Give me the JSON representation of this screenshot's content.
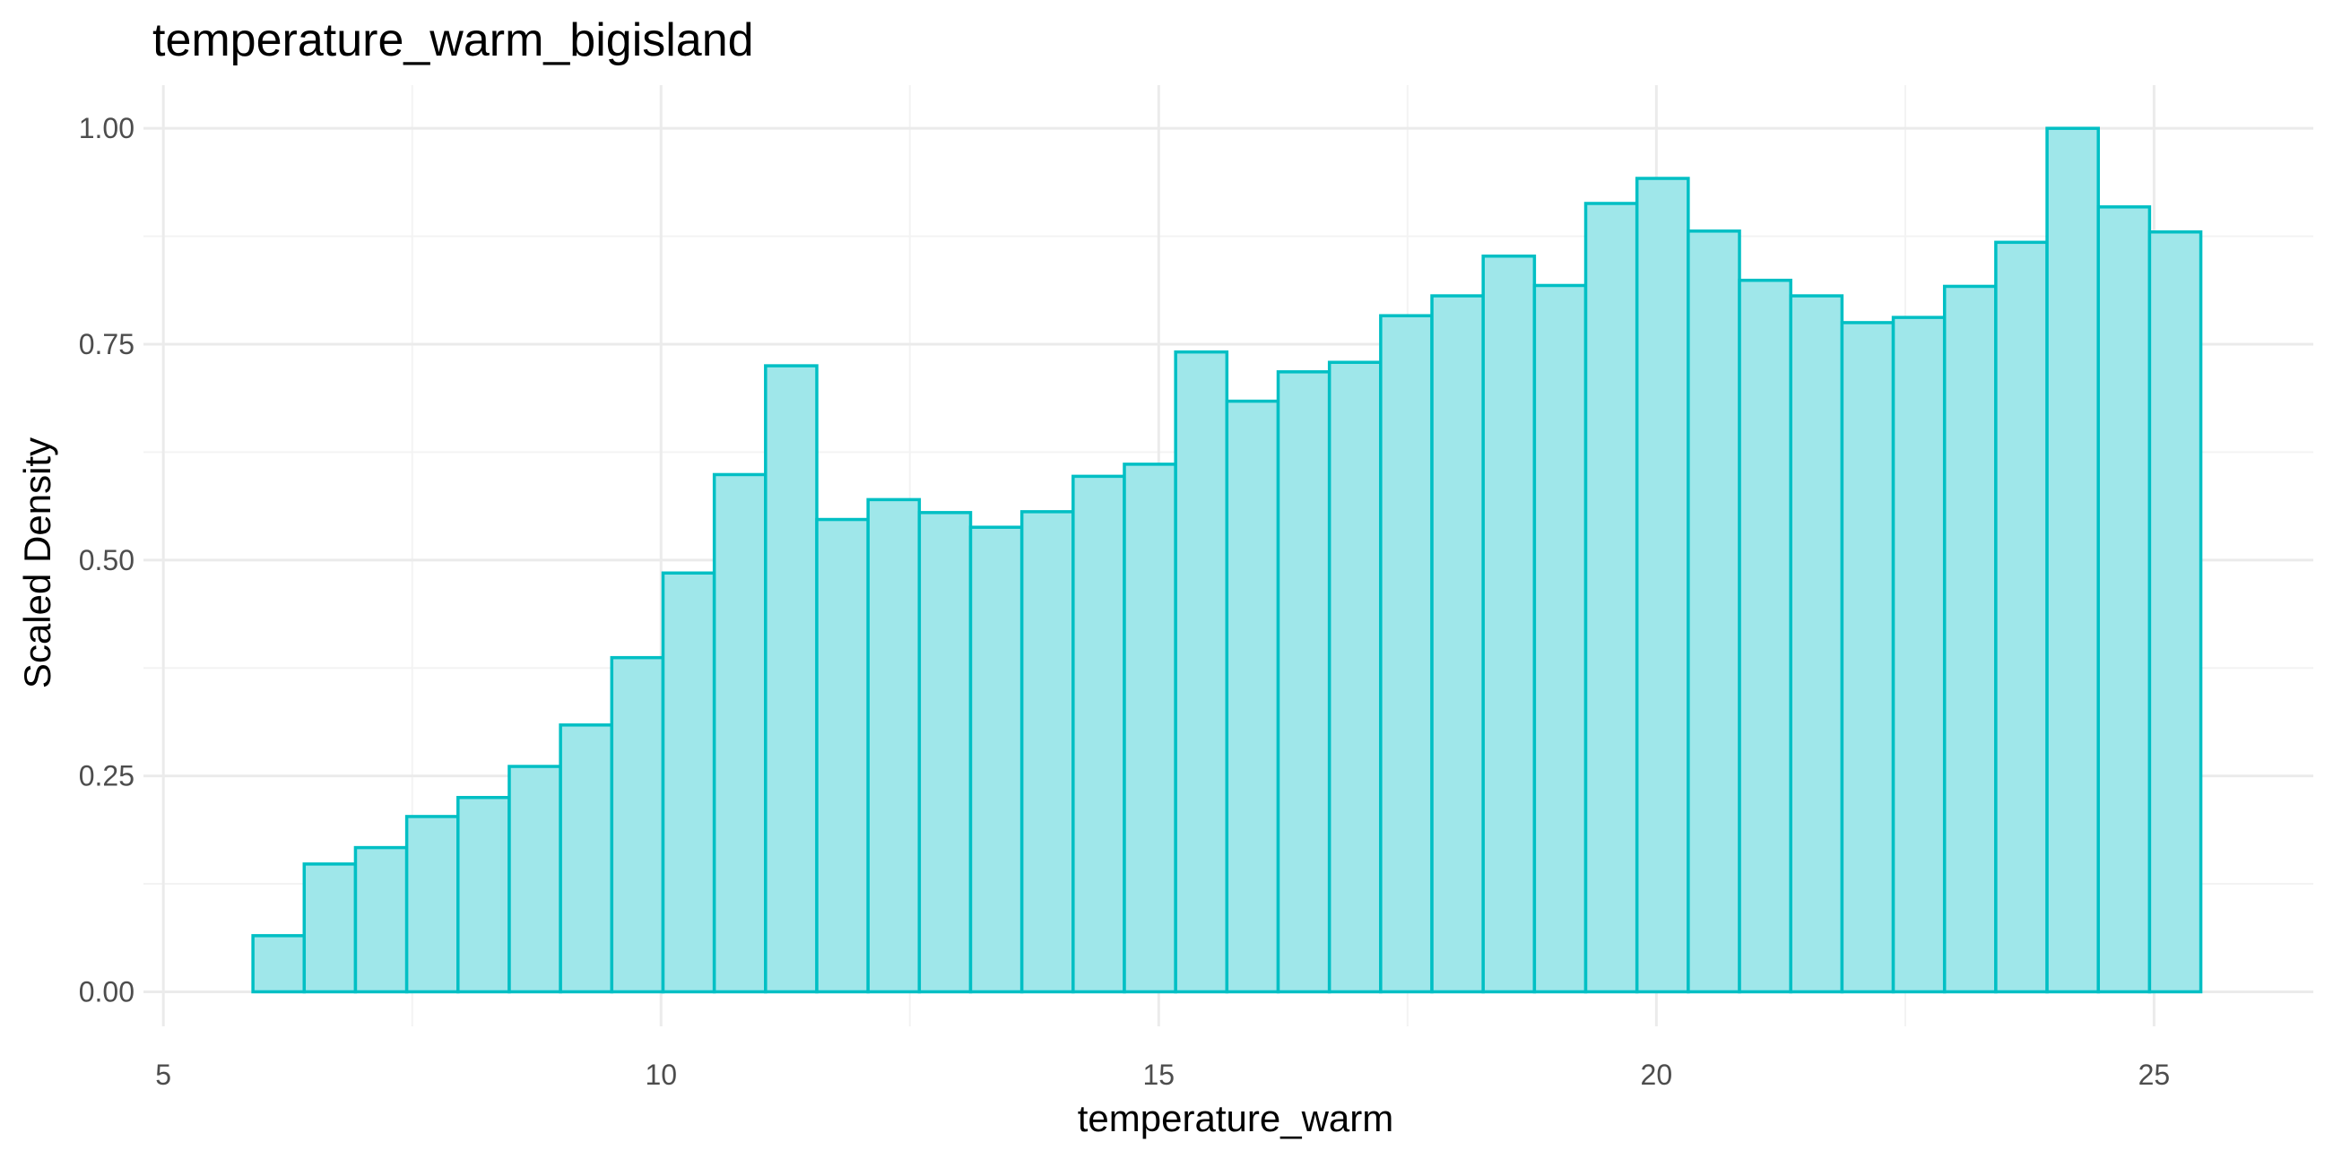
{
  "chart_data": {
    "type": "bar",
    "title": "temperature_warm_bigisland",
    "xlabel": "temperature_warm",
    "ylabel": "Scaled Density",
    "xlim": [
      4.8,
      26.6
    ],
    "ylim": [
      -0.04,
      1.05
    ],
    "x_ticks": [
      5,
      10,
      15,
      20,
      25
    ],
    "x_tick_labels": [
      "5",
      "10",
      "15",
      "20",
      "25"
    ],
    "y_ticks": [
      0,
      0.25,
      0.5,
      0.75,
      1.0
    ],
    "y_tick_labels": [
      "0.00",
      "0.25",
      "0.50",
      "0.75",
      "1.00"
    ],
    "grid": true,
    "legend": "none",
    "fill_color": "#9fe7ea",
    "stroke_color": "#00bfc4",
    "bins": {
      "start": 5.9,
      "width": 0.515,
      "values": [
        0.065,
        0.148,
        0.167,
        0.203,
        0.225,
        0.261,
        0.309,
        0.387,
        0.485,
        0.599,
        0.725,
        0.547,
        0.57,
        0.555,
        0.538,
        0.556,
        0.597,
        0.611,
        0.741,
        0.684,
        0.718,
        0.729,
        0.783,
        0.806,
        0.852,
        0.818,
        0.913,
        0.942,
        0.881,
        0.824,
        0.806,
        0.775,
        0.781,
        0.817,
        0.868,
        1.0,
        0.909,
        0.88
      ]
    }
  }
}
